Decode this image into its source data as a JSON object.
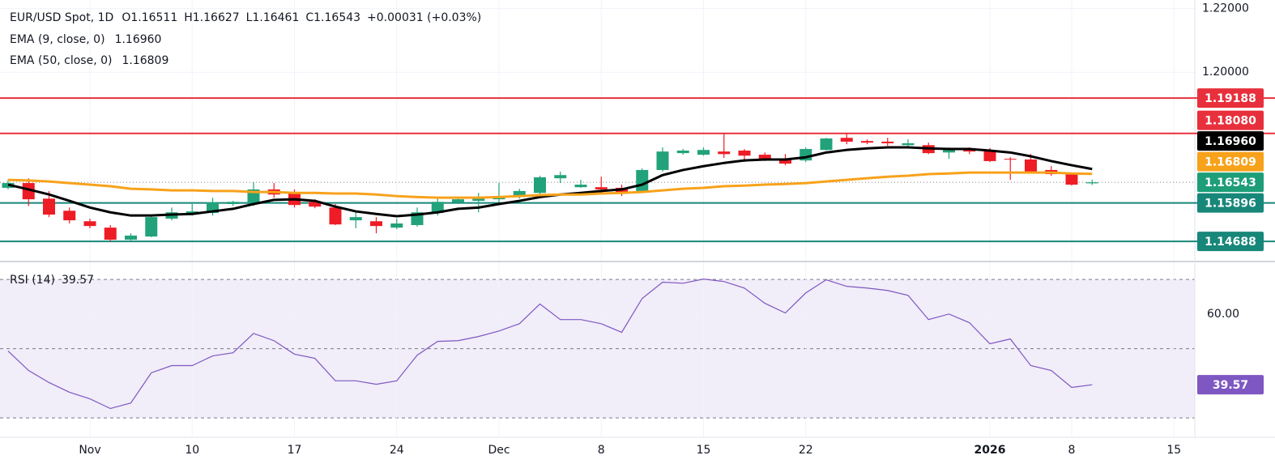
{
  "chart_data": {
    "type": "candlestick",
    "title": "EUR/USD Spot, 1D",
    "header_ohlc": [
      "O1.16511",
      "H1.16627",
      "L1.16461",
      "C1.16543"
    ],
    "header_change": "+0.00031 (+0.03%)",
    "categories": [
      null,
      null,
      null,
      null,
      "Nov",
      null,
      null,
      null,
      null,
      "10",
      null,
      null,
      null,
      null,
      "17",
      null,
      null,
      null,
      null,
      "24",
      null,
      null,
      null,
      null,
      "Dec",
      null,
      null,
      null,
      null,
      "8",
      null,
      null,
      null,
      null,
      "15",
      null,
      null,
      null,
      null,
      "22",
      null,
      null,
      null,
      null,
      null,
      null,
      null,
      null,
      "2026",
      null,
      null,
      null,
      "8",
      null,
      null,
      null,
      null,
      "15"
    ],
    "open": [
      1.1637,
      1.1652,
      1.1603,
      1.1565,
      1.1532,
      1.1512,
      1.1474,
      1.1484,
      1.154,
      1.1558,
      1.1558,
      1.1586,
      1.1586,
      1.1632,
      1.1624,
      1.1593,
      1.1575,
      1.1535,
      1.1532,
      1.1512,
      1.152,
      1.1558,
      1.1591,
      1.1596,
      1.1601,
      1.1608,
      1.1621,
      1.1667,
      1.1639,
      1.1639,
      1.1637,
      1.1627,
      1.1693,
      1.1746,
      1.1741,
      1.1751,
      1.1754,
      1.1741,
      1.1728,
      1.1723,
      1.1756,
      1.1794,
      1.1784,
      1.1782,
      1.1771,
      1.1771,
      1.1748,
      1.1759,
      1.1754,
      1.1728,
      1.1726,
      1.1693,
      1.168,
      1.16511,
      null,
      null,
      null,
      null
    ],
    "high": [
      1.1662,
      1.1667,
      1.1627,
      1.1575,
      1.154,
      1.152,
      1.1494,
      1.1553,
      1.1575,
      1.1586,
      1.1606,
      1.1596,
      1.1654,
      1.1652,
      1.1632,
      1.1601,
      1.1586,
      1.156,
      1.1545,
      1.154,
      1.1575,
      1.1603,
      1.1608,
      1.1621,
      1.1652,
      1.1634,
      1.1675,
      1.1688,
      1.1662,
      1.1672,
      1.1647,
      1.1698,
      1.1764,
      1.1759,
      1.1764,
      1.1807,
      1.1759,
      1.1748,
      1.1743,
      1.1764,
      1.1794,
      1.1807,
      1.1789,
      1.1794,
      1.1789,
      1.1779,
      1.1764,
      1.1764,
      1.1762,
      1.1733,
      1.1743,
      1.1705,
      1.1685,
      1.16627,
      null,
      null,
      null,
      null
    ],
    "low": [
      1.1632,
      1.158,
      1.1545,
      1.1525,
      1.151,
      1.1469,
      1.1469,
      1.1482,
      1.1535,
      1.155,
      1.155,
      1.158,
      1.158,
      1.1606,
      1.1575,
      1.1573,
      1.152,
      1.151,
      1.1494,
      1.1507,
      1.1515,
      1.155,
      1.1586,
      1.156,
      1.1591,
      1.1603,
      1.1616,
      1.1652,
      1.1637,
      1.1616,
      1.1611,
      1.1621,
      1.1688,
      1.1741,
      1.1738,
      1.1731,
      1.1718,
      1.1721,
      1.1708,
      1.1718,
      1.1754,
      1.1774,
      1.1774,
      1.1769,
      1.1764,
      1.1743,
      1.1728,
      1.1743,
      1.1718,
      1.1662,
      1.1682,
      1.1675,
      1.1644,
      1.16461,
      null,
      null,
      null,
      null
    ],
    "close": [
      1.1652,
      1.1601,
      1.1553,
      1.1535,
      1.1517,
      1.1474,
      1.1487,
      1.1545,
      1.156,
      1.1563,
      1.1591,
      1.1593,
      1.1632,
      1.1616,
      1.1583,
      1.1578,
      1.1522,
      1.1545,
      1.1517,
      1.1525,
      1.156,
      1.1593,
      1.1601,
      1.1608,
      1.1611,
      1.1627,
      1.167,
      1.1677,
      1.1647,
      1.1632,
      1.1621,
      1.1693,
      1.1751,
      1.1754,
      1.1756,
      1.1743,
      1.1738,
      1.1723,
      1.1713,
      1.1759,
      1.1792,
      1.1782,
      1.1779,
      1.1777,
      1.1777,
      1.1746,
      1.1756,
      1.1751,
      1.1721,
      1.1726,
      1.1688,
      1.168,
      1.1647,
      1.16543,
      null,
      null,
      null,
      null
    ],
    "up_color": "#22a27a",
    "down_color": "#ee1c25",
    "price_color": "#1e9e78",
    "ylim": [
      1.1408,
      1.2227
    ],
    "yticks": [
      {
        "value": 1.22,
        "label": "1.22000"
      },
      {
        "value": 1.2,
        "label": "1.20000"
      }
    ],
    "levels": [
      {
        "value": 1.19188,
        "label": "1.19188",
        "color": "#e8303c"
      },
      {
        "value": 1.1808,
        "label": "1.18080",
        "color": "#e8303c"
      },
      {
        "value": 1.15896,
        "label": "1.15896",
        "color": "#17877a"
      },
      {
        "value": 1.14688,
        "label": "1.14688",
        "color": "#17877a"
      }
    ],
    "series": [
      {
        "name": "EMA (9, close, 0)",
        "color": "#000000",
        "last_value_label": "1.16960",
        "values": [
          1.1647,
          1.1632,
          1.1616,
          1.1596,
          1.1575,
          1.156,
          1.155,
          1.155,
          1.1553,
          1.1555,
          1.1563,
          1.1571,
          1.1586,
          1.1599,
          1.1601,
          1.1596,
          1.1578,
          1.1563,
          1.1555,
          1.1548,
          1.1553,
          1.156,
          1.1571,
          1.1575,
          1.1586,
          1.1596,
          1.1608,
          1.1616,
          1.1621,
          1.1627,
          1.1632,
          1.1647,
          1.1677,
          1.1693,
          1.1705,
          1.1715,
          1.1723,
          1.1726,
          1.1726,
          1.1733,
          1.1748,
          1.1756,
          1.1761,
          1.1764,
          1.1764,
          1.1761,
          1.1759,
          1.1759,
          1.1754,
          1.1748,
          1.1736,
          1.1721,
          1.1708,
          1.1696,
          null,
          null,
          null,
          null
        ]
      },
      {
        "name": "EMA (50, close, 0)",
        "color": "#f7a21b",
        "last_value_label": "1.16809",
        "values": [
          1.1662,
          1.166,
          1.1657,
          1.1652,
          1.1647,
          1.1642,
          1.1634,
          1.1632,
          1.1629,
          1.1629,
          1.1627,
          1.1627,
          1.1624,
          1.1624,
          1.1621,
          1.1621,
          1.1619,
          1.1619,
          1.1616,
          1.1611,
          1.1608,
          1.1606,
          1.1606,
          1.1606,
          1.1608,
          1.1611,
          1.1614,
          1.1616,
          1.1616,
          1.1619,
          1.1621,
          1.1624,
          1.1629,
          1.1634,
          1.1637,
          1.1642,
          1.1644,
          1.1647,
          1.1649,
          1.1652,
          1.1657,
          1.1662,
          1.1667,
          1.1672,
          1.1675,
          1.168,
          1.1682,
          1.1685,
          1.1685,
          1.1685,
          1.1685,
          1.1685,
          1.1682,
          1.16809,
          null,
          null,
          null,
          null
        ]
      }
    ],
    "rsi": {
      "name": "RSI (14)",
      "color": "#7e57c2",
      "values": [
        49.3,
        43.7,
        40.2,
        37.4,
        35.5,
        32.7,
        34.3,
        43.0,
        45.1,
        45.1,
        47.9,
        48.8,
        54.4,
        52.3,
        48.4,
        47.2,
        40.7,
        40.7,
        39.7,
        40.7,
        48.1,
        52.1,
        52.3,
        53.5,
        55.1,
        57.2,
        62.9,
        58.4,
        58.4,
        57.2,
        54.7,
        64.5,
        69.2,
        68.9,
        70.1,
        69.4,
        67.5,
        63.1,
        60.3,
        66.1,
        69.9,
        68.0,
        67.5,
        66.8,
        65.4,
        58.4,
        60.0,
        57.5,
        51.4,
        52.8,
        45.1,
        43.7,
        38.8,
        39.57,
        null,
        null,
        null,
        null
      ],
      "ylim": [
        24.4,
        74.7
      ],
      "yticks": [
        {
          "value": 60,
          "label": "60.00"
        }
      ],
      "bands": [
        30,
        50,
        70
      ]
    },
    "grid": true
  }
}
